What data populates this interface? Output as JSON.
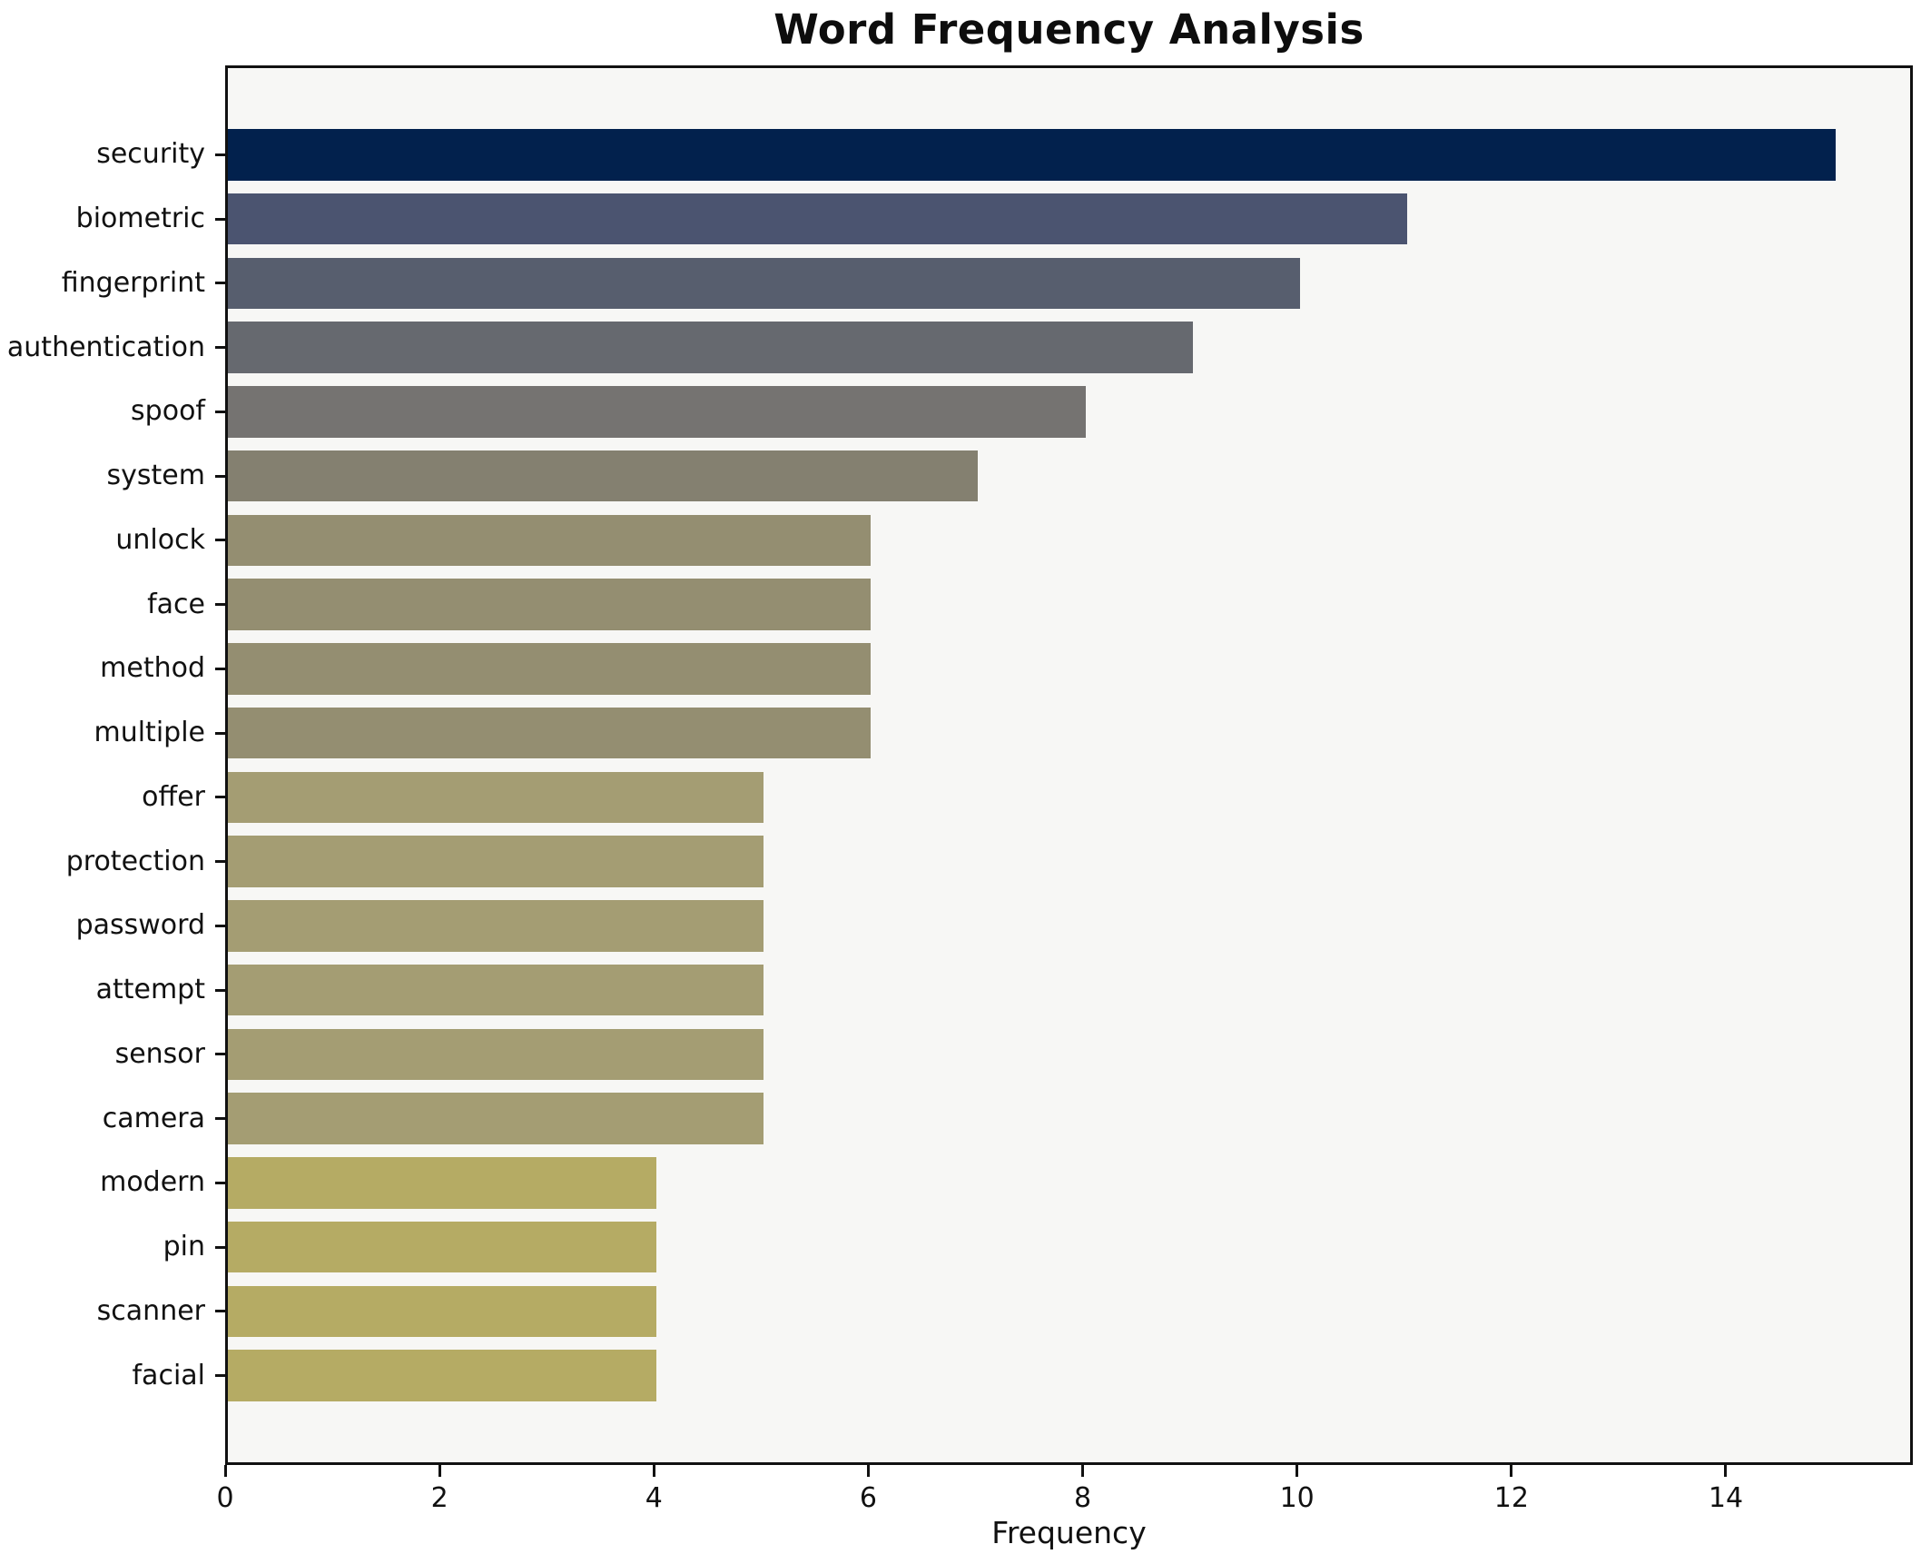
{
  "title": "Word Frequency Analysis",
  "xlabel": "Frequency",
  "chart_data": {
    "type": "bar",
    "orientation": "horizontal",
    "title": "Word Frequency Analysis",
    "xlabel": "Frequency",
    "ylabel": "",
    "categories": [
      "security",
      "biometric",
      "fingerprint",
      "authentication",
      "spoof",
      "system",
      "unlock",
      "face",
      "method",
      "multiple",
      "offer",
      "protection",
      "password",
      "attempt",
      "sensor",
      "camera",
      "modern",
      "pin",
      "scanner",
      "facial"
    ],
    "values": [
      15,
      11,
      10,
      9,
      8,
      7,
      6,
      6,
      6,
      6,
      5,
      5,
      5,
      5,
      5,
      5,
      4,
      4,
      4,
      4
    ],
    "bar_colors": [
      "#02214d",
      "#4b5470",
      "#575e6e",
      "#66696f",
      "#757371",
      "#848070",
      "#948e71",
      "#948e71",
      "#948e71",
      "#948e71",
      "#a49d73",
      "#a49d73",
      "#a49d73",
      "#a49d73",
      "#a49d73",
      "#a49d73",
      "#b5ab64",
      "#b5ab64",
      "#b5ab64",
      "#b5ab64"
    ],
    "xticks": [
      0,
      2,
      4,
      6,
      8,
      10,
      12,
      14
    ],
    "xlim": [
      0,
      15.745
    ],
    "grid": false,
    "legend": null,
    "plot_background": "#f7f7f5",
    "figure_background": "#ffffff",
    "spine_color": "#111111"
  }
}
